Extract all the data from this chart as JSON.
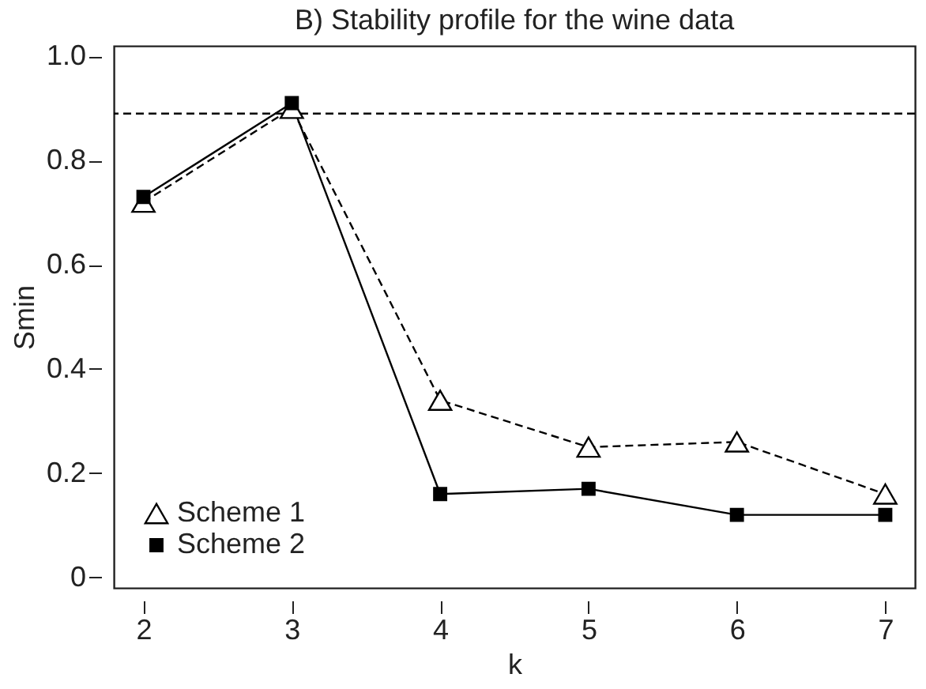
{
  "chart_data": {
    "type": "line",
    "title": "B) Stability profile for the wine data",
    "xlabel": "k",
    "ylabel": "Smin",
    "x": [
      2,
      3,
      4,
      5,
      6,
      7
    ],
    "series": [
      {
        "name": "Scheme 1",
        "color": "#000000",
        "marker": "triangle",
        "line_style": "dashed",
        "values": [
          0.72,
          0.9,
          0.34,
          0.25,
          0.26,
          0.16
        ]
      },
      {
        "name": "Scheme 2",
        "color": "#000000",
        "marker": "square",
        "line_style": "solid",
        "values": [
          0.73,
          0.91,
          0.16,
          0.17,
          0.12,
          0.12
        ]
      }
    ],
    "xlim": [
      1.8,
      7.2
    ],
    "xticks": [
      2,
      3,
      4,
      5,
      6,
      7
    ],
    "ylim": [
      -0.02,
      1.02
    ],
    "yticks": [
      {
        "value": 0,
        "label": "0"
      },
      {
        "value": 0.2,
        "label": "0.2"
      },
      {
        "value": 0.4,
        "label": "0.4"
      },
      {
        "value": 0.6,
        "label": "0.6"
      },
      {
        "value": 0.8,
        "label": "0.8"
      },
      {
        "value": 1.0,
        "label": "1.0"
      }
    ],
    "ref_lines": [
      {
        "axis": "y",
        "value": 0.89,
        "line_style": "dashed",
        "color": "#000000"
      }
    ],
    "grid": false,
    "legend": "bottom left"
  }
}
